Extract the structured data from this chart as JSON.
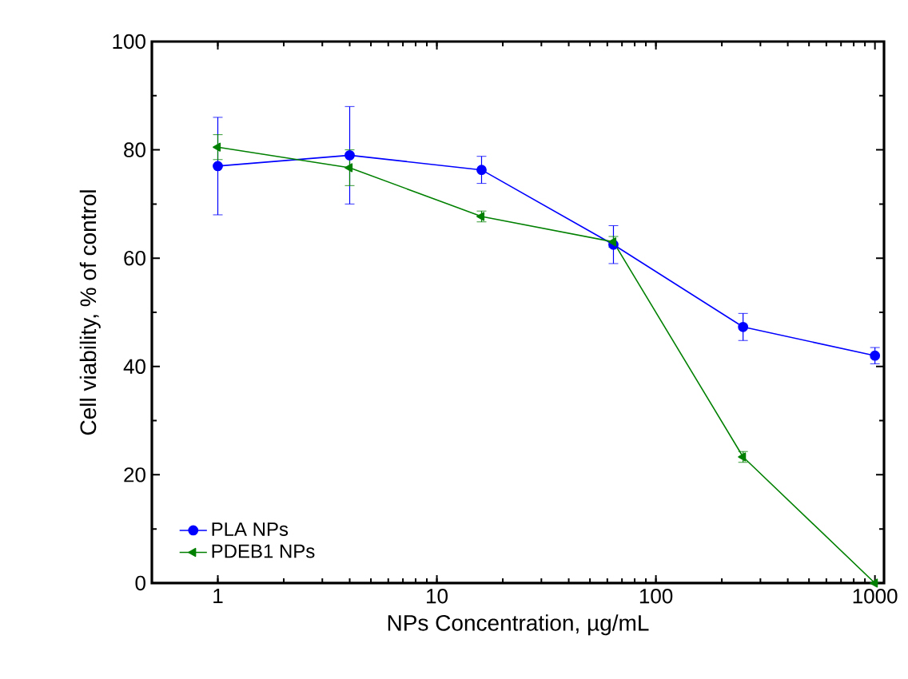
{
  "chart_data": {
    "type": "line",
    "xlabel": "NPs Concentration, µg/mL",
    "ylabel": "Cell viability, % of control",
    "log": "x",
    "xlim": [
      0.5,
      1100
    ],
    "ylim": [
      0,
      100
    ],
    "xticks": [
      1,
      10,
      100,
      1000
    ],
    "yticks": [
      0,
      20,
      40,
      60,
      80,
      100
    ],
    "grid": false,
    "legend": "bottom left",
    "line_style": "solid",
    "series": [
      {
        "name": "PLA NPs",
        "color": "#0000ff",
        "marker": "circle",
        "x": [
          1,
          4,
          16,
          64,
          250,
          1000
        ],
        "values": [
          77,
          79,
          76.3,
          62.5,
          47.3,
          42
        ],
        "errors": [
          9,
          9,
          2.5,
          3.5,
          2.5,
          1.5
        ]
      },
      {
        "name": "PDEB1 NPs",
        "color": "#008000",
        "marker": "triangle",
        "x": [
          1,
          4,
          16,
          64,
          250,
          1000
        ],
        "values": [
          80.5,
          76.7,
          67.7,
          63,
          23.3,
          0
        ],
        "errors": [
          2.3,
          3.3,
          1,
          1,
          1,
          null
        ]
      }
    ]
  }
}
